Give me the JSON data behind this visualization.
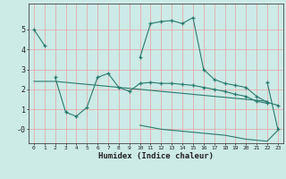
{
  "xlabel": "Humidex (Indice chaleur)",
  "x_values": [
    0,
    1,
    2,
    3,
    4,
    5,
    6,
    7,
    8,
    9,
    10,
    11,
    12,
    13,
    14,
    15,
    16,
    17,
    18,
    19,
    20,
    21,
    22,
    23
  ],
  "line1_x": [
    0,
    1
  ],
  "line1_y": [
    5.0,
    4.2
  ],
  "line2_x": [
    2,
    3,
    4,
    5,
    6,
    7,
    8,
    9,
    10,
    11,
    12,
    13,
    14,
    15,
    16,
    17,
    18,
    19,
    20,
    21,
    22
  ],
  "line2_y": [
    2.6,
    0.85,
    0.65,
    1.1,
    2.6,
    2.8,
    2.1,
    1.9,
    2.3,
    2.35,
    2.3,
    2.3,
    2.25,
    2.2,
    2.1,
    2.0,
    1.9,
    1.75,
    1.65,
    1.4,
    1.3
  ],
  "line3_x": [
    10,
    11,
    12,
    13,
    14,
    15,
    16,
    17,
    18,
    19,
    20,
    21,
    22,
    23
  ],
  "line3_y": [
    3.6,
    5.3,
    5.4,
    5.45,
    5.3,
    5.6,
    3.0,
    2.5,
    2.3,
    2.2,
    2.1,
    1.65,
    1.35,
    1.2
  ],
  "line4_x": [
    22,
    23
  ],
  "line4_y": [
    2.35,
    0.0
  ],
  "line5_x": [
    0,
    1,
    2,
    3,
    4,
    5,
    6,
    7,
    8,
    9,
    10,
    11,
    12,
    13,
    14,
    15,
    16,
    17,
    18,
    19,
    20,
    21,
    22
  ],
  "line5_y": [
    2.4,
    2.4,
    2.4,
    2.35,
    2.3,
    2.25,
    2.2,
    2.15,
    2.1,
    2.05,
    2.0,
    1.95,
    1.9,
    1.85,
    1.8,
    1.75,
    1.7,
    1.65,
    1.6,
    1.55,
    1.5,
    1.45,
    1.4
  ],
  "line6_x": [
    10,
    11,
    12,
    13,
    14,
    15,
    16,
    17,
    18,
    19,
    20,
    21,
    22,
    23
  ],
  "line6_y": [
    0.2,
    0.1,
    0.0,
    -0.05,
    -0.1,
    -0.15,
    -0.2,
    -0.25,
    -0.3,
    -0.4,
    -0.5,
    -0.55,
    -0.6,
    -0.05
  ],
  "line_color": "#2a7a6e",
  "bg_color": "#cceae6",
  "grid_color": "#e8a0a0",
  "ylim": [
    -0.7,
    6.3
  ],
  "xlim": [
    -0.5,
    23.5
  ],
  "yticks": [
    0,
    1,
    2,
    3,
    4,
    5
  ],
  "ytick_labels": [
    "-0",
    "1",
    "2",
    "3",
    "4",
    "5"
  ]
}
